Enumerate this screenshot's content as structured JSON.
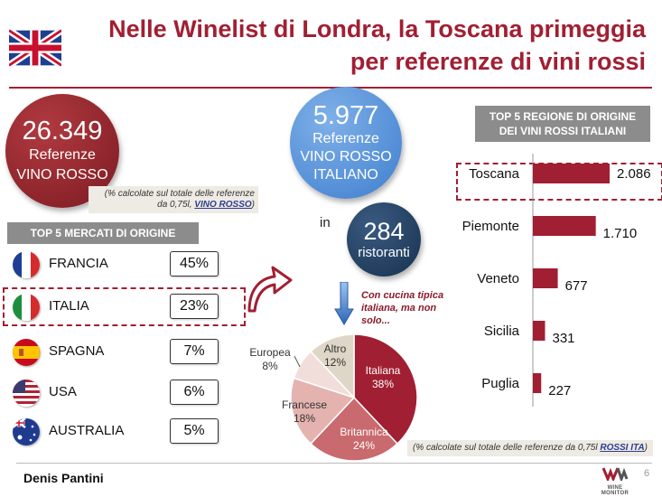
{
  "header": {
    "title_line1": "Nelle Winelist di Londra, la Toscana primeggia",
    "title_line2": "per referenze di vini rossi"
  },
  "kpi_referenze": {
    "value": "26.349",
    "line1": "Referenze",
    "line2": "VINO ROSSO"
  },
  "note_referenze": {
    "text": "(% calcolate sul totale delle referenze da 0,75l, ",
    "link": "VINO ROSSO",
    "suffix": ")"
  },
  "kpi_italiano": {
    "value": "5.977",
    "line1": "Referenze",
    "line2": "VINO ROSSO",
    "line3": "ITALIANO"
  },
  "in_label": "in",
  "kpi_ristoranti": {
    "value": "284",
    "label": "ristoranti"
  },
  "cucina_note": "Con cucina tipica italiana, ma non solo...",
  "mercati": {
    "header": "TOP 5 MERCATI DI ORIGINE",
    "rows": [
      {
        "name": "FRANCIA",
        "pct": "45%"
      },
      {
        "name": "ITALIA",
        "pct": "23%"
      },
      {
        "name": "SPAGNA",
        "pct": "7%"
      },
      {
        "name": "USA",
        "pct": "6%"
      },
      {
        "name": "AUSTRALIA",
        "pct": "5%"
      }
    ]
  },
  "regioni_header": "TOP 5 REGIONE DI ORIGINE DEI VINI ROSSI ITALIANI",
  "note_regioni": {
    "text": "(% calcolate sul totale delle referenze da 0,75l ",
    "link": "ROSSI ITA",
    "suffix": ")"
  },
  "footer": {
    "author": "Denis Pantini",
    "page": "6",
    "logo_text": "WINE MONITOR"
  },
  "colors": {
    "accent": "#a11f33",
    "blue": "#3f7fcf",
    "navy": "#17324f",
    "gray": "#8c8c8c"
  },
  "icons": [
    "uk-flag-icon",
    "france-flag-icon",
    "italy-flag-icon",
    "spain-flag-icon",
    "usa-flag-icon",
    "australia-flag-icon",
    "curved-arrow-icon",
    "down-arrow-icon"
  ],
  "chart_data": [
    {
      "type": "bar",
      "orientation": "horizontal",
      "categories": [
        "Toscana",
        "Piemonte",
        "Veneto",
        "Sicilia",
        "Puglia"
      ],
      "values": [
        2086,
        1710,
        677,
        331,
        227
      ],
      "labels": [
        "2.086",
        "1.710",
        "677",
        "331",
        "227"
      ],
      "color": "#a11f33"
    },
    {
      "type": "pie",
      "slices": [
        {
          "name": "Italiana",
          "value": 38,
          "label": "38%",
          "color": "#a11f33"
        },
        {
          "name": "Britannica",
          "value": 24,
          "label": "24%",
          "color": "#c96a6e"
        },
        {
          "name": "Francese",
          "value": 18,
          "label": "18%",
          "color": "#e4b3b0"
        },
        {
          "name": "Europea",
          "value": 8,
          "label": "8%",
          "color": "#f1dedb"
        },
        {
          "name": "Altro",
          "value": 12,
          "label": "12%",
          "color": "#ded6c6"
        }
      ]
    }
  ]
}
